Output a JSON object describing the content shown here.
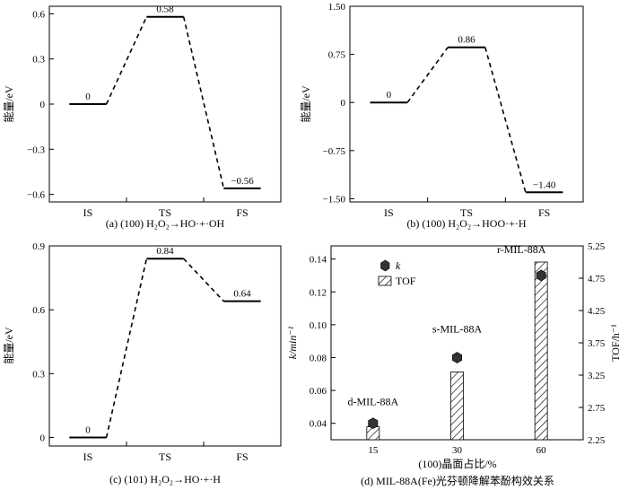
{
  "chart_data": [
    {
      "id": "a",
      "type": "line",
      "caption": "(a)  (100) H₂O₂→HO·+·OH",
      "ylabel": "能量/eV",
      "categories": [
        "IS",
        "TS",
        "FS"
      ],
      "values": [
        0,
        0.58,
        -0.56
      ],
      "value_labels": [
        "0",
        "0.58",
        "−0.56"
      ],
      "ylim": [
        -0.65,
        0.65
      ],
      "yticks": [
        0.6,
        0.3,
        0,
        -0.3,
        -0.6
      ],
      "ytick_labels": [
        "0.6",
        "0.3",
        "0",
        "−0.3",
        "−0.6"
      ]
    },
    {
      "id": "b",
      "type": "line",
      "caption": "(b)  (100) H₂O₂→HOO·+·H",
      "ylabel": "能量/eV",
      "categories": [
        "IS",
        "TS",
        "FS"
      ],
      "values": [
        0,
        0.86,
        -1.4
      ],
      "value_labels": [
        "0",
        "0.86",
        "−1.40"
      ],
      "ylim": [
        -1.55,
        1.5
      ],
      "yticks": [
        1.5,
        0.75,
        0,
        -0.75,
        -1.5
      ],
      "ytick_labels": [
        "1.50",
        "0.75",
        "0",
        "−0.75",
        "−1.50"
      ]
    },
    {
      "id": "c",
      "type": "line",
      "caption": "(c)  (101) H₂O₂→HO·+·H",
      "ylabel": "能量/eV",
      "categories": [
        "IS",
        "TS",
        "FS"
      ],
      "values": [
        0,
        0.84,
        0.64
      ],
      "value_labels": [
        "0",
        "0.84",
        "0.64"
      ],
      "ylim": [
        -0.04,
        0.9
      ],
      "yticks": [
        0.9,
        0.6,
        0.3,
        0
      ],
      "ytick_labels": [
        "0.9",
        "0.6",
        "0.3",
        "0"
      ]
    },
    {
      "id": "d",
      "type": "bar",
      "caption": "(d)  MIL-88A(Fe)光芬顿降解苯酚构效关系",
      "xlabel": "(100)晶面占比/%",
      "ylabel": "k/min⁻¹",
      "ylabel_right": "TOF/h⁻¹",
      "categories": [
        "15",
        "30",
        "60"
      ],
      "labels": [
        "d-MIL-88A",
        "s-MIL-88A",
        "r-MIL-88A"
      ],
      "series": [
        {
          "name": "k",
          "marker": "hexagon",
          "values": [
            0.04,
            0.08,
            0.13
          ]
        },
        {
          "name": "TOF",
          "marker": "hatched-bar",
          "values": [
            2.45,
            3.3,
            5.0
          ]
        }
      ],
      "ylim": [
        0.03,
        0.148
      ],
      "yticks": [
        0.04,
        0.06,
        0.08,
        0.1,
        0.12,
        0.14
      ],
      "ytick_labels": [
        "0.04",
        "0.06",
        "0.08",
        "0.10",
        "0.12",
        "0.14"
      ],
      "ylim_right": [
        2.25,
        5.25
      ],
      "yticks_right": [
        2.25,
        2.75,
        3.25,
        3.75,
        4.25,
        4.75,
        5.25
      ],
      "ytick_labels_right": [
        "2.25",
        "2.75",
        "3.25",
        "3.75",
        "4.25",
        "4.75",
        "5.25"
      ],
      "legend": "top-left"
    }
  ]
}
